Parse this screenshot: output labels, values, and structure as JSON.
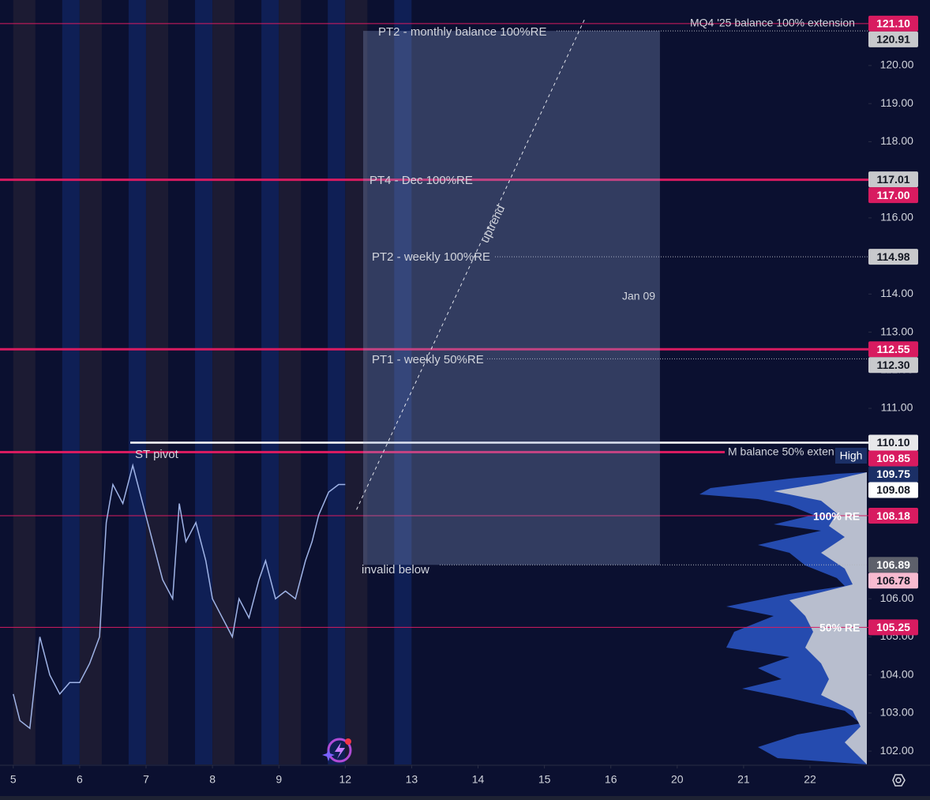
{
  "chart_data": {
    "type": "line",
    "xlim": [
      -0.2,
      12.88
    ],
    "ylim": [
      101.65,
      121.72
    ],
    "xticks": [
      {
        "value": 0,
        "label": "5"
      },
      {
        "value": 1,
        "label": "6"
      },
      {
        "value": 2,
        "label": "7"
      },
      {
        "value": 3,
        "label": "8"
      },
      {
        "value": 4,
        "label": "9"
      },
      {
        "value": 5,
        "label": "12"
      },
      {
        "value": 6,
        "label": "13"
      },
      {
        "value": 7,
        "label": "14"
      },
      {
        "value": 8,
        "label": "15"
      },
      {
        "value": 9,
        "label": "16"
      },
      {
        "value": 10,
        "label": "20"
      },
      {
        "value": 11,
        "label": "21"
      },
      {
        "value": 12,
        "label": "22"
      }
    ],
    "yticks": [
      {
        "value": 120,
        "label": "120.00"
      },
      {
        "value": 119,
        "label": "119.00"
      },
      {
        "value": 118,
        "label": "118.00"
      },
      {
        "value": 116,
        "label": "116.00"
      },
      {
        "value": 114,
        "label": "114.00"
      },
      {
        "value": 113,
        "label": "113.00"
      },
      {
        "value": 112,
        "label": "112.00"
      },
      {
        "value": 111,
        "label": "111.00"
      },
      {
        "value": 106,
        "label": "106.00"
      },
      {
        "value": 105,
        "label": "105.00"
      },
      {
        "value": 104,
        "label": "104.00"
      },
      {
        "value": 103,
        "label": "103.00"
      },
      {
        "value": 102,
        "label": "102.00"
      }
    ],
    "price": {
      "color": "#9fb3e6",
      "x": [
        0,
        0.1,
        0.25,
        0.4,
        0.55,
        0.7,
        0.85,
        1.0,
        1.15,
        1.3,
        1.4,
        1.5,
        1.65,
        1.8,
        1.95,
        2.1,
        2.25,
        2.4,
        2.5,
        2.6,
        2.75,
        2.9,
        3.0,
        3.15,
        3.3,
        3.4,
        3.55,
        3.7,
        3.8,
        3.95,
        4.1,
        4.25,
        4.4,
        4.5,
        4.6,
        4.75,
        4.9,
        5.0
      ],
      "values": [
        103.5,
        102.8,
        102.6,
        105.0,
        104.0,
        103.5,
        103.8,
        103.8,
        104.3,
        105.0,
        108.0,
        109.0,
        108.5,
        109.5,
        108.5,
        107.5,
        106.5,
        106.0,
        108.5,
        107.5,
        108.0,
        107.0,
        106.0,
        105.5,
        105.0,
        106.0,
        105.5,
        106.5,
        107.0,
        106.0,
        106.2,
        106.0,
        107.0,
        107.5,
        108.2,
        108.8,
        109.0,
        109.0
      ]
    },
    "levels": [
      {
        "value": 121.1,
        "label": "121.10",
        "color": "#d81b60",
        "text_color": "#ffffff",
        "line": "thin"
      },
      {
        "value": 120.91,
        "label": "120.91",
        "color": "#c8c9cc",
        "text_color": "#131722",
        "line": "dotted"
      },
      {
        "value": 117.01,
        "label": "117.01",
        "color": "#c8c9cc",
        "text_color": "#131722",
        "line": "none"
      },
      {
        "value": 117.0,
        "label": "117.00",
        "color": "#d81b60",
        "text_color": "#ffffff",
        "line": "thick"
      },
      {
        "value": 114.98,
        "label": "114.98",
        "color": "#c8c9cc",
        "text_color": "#131722",
        "line": "dotted"
      },
      {
        "value": 112.55,
        "label": "112.55",
        "color": "#d81b60",
        "text_color": "#ffffff",
        "line": "thick"
      },
      {
        "value": 112.3,
        "label": "112.30",
        "color": "#c8c9cc",
        "text_color": "#131722",
        "line": "dotted"
      },
      {
        "value": 110.1,
        "label": "110.10",
        "color": "#e8e8ea",
        "text_color": "#131722",
        "line": "white"
      },
      {
        "value": 109.85,
        "label": "109.85",
        "color": "#d81b60",
        "text_color": "#ffffff",
        "line": "thick"
      },
      {
        "value": 109.75,
        "label": "109.75",
        "color": "#1b2f66",
        "text_color": "#ffffff",
        "line": "none"
      },
      {
        "value": 109.08,
        "label": "109.08",
        "color": "#ffffff",
        "text_color": "#131722",
        "line": "none"
      },
      {
        "value": 108.18,
        "label": "108.18",
        "color": "#d81b60",
        "text_color": "#ffffff",
        "line": "thin"
      },
      {
        "value": 106.89,
        "label": "106.89",
        "color": "#5d606b",
        "text_color": "#ffffff",
        "line": "dotted"
      },
      {
        "value": 106.78,
        "label": "106.78",
        "color": "#f8bbd0",
        "text_color": "#131722",
        "line": "none"
      },
      {
        "value": 105.25,
        "label": "105.25",
        "color": "#d81b60",
        "text_color": "#ffffff",
        "line": "thin"
      }
    ],
    "zone": {
      "x": [
        5.27,
        9.74
      ],
      "y": [
        106.89,
        120.91
      ]
    },
    "trend": {
      "x": [
        5.17,
        8.62
      ],
      "y": [
        108.34,
        121.27
      ]
    },
    "annotations": {
      "mq4": "MQ4 '25 balance 100% extension",
      "pt2_monthly": "PT2 - monthly balance 100%RE",
      "pt4": "PT4 - Dec 100%RE",
      "uptrend": "uptrend",
      "pt2_weekly": "PT2 - weekly 100%RE",
      "jan": "Jan 09",
      "pt1": "PT1 - weekly 50%RE",
      "st_pivot": "ST pivot",
      "m_balance": "M balance 50% exten",
      "high": "High",
      "re100": "100% RE",
      "re50": "50% RE",
      "invalid": "invalid below"
    }
  }
}
